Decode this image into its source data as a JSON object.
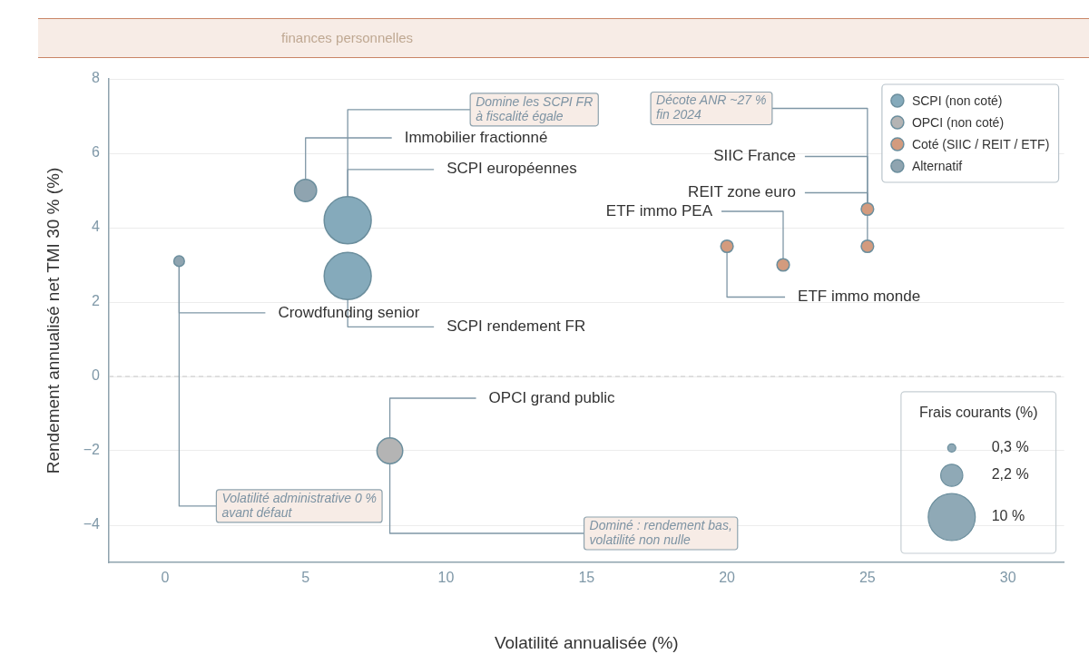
{
  "chart_data": {
    "type": "bubble",
    "subtitle": "finances personnelles",
    "xlabel": "Volatilité annualisée (%)",
    "ylabel": "Rendement annualisé net TMI 30 % (%)",
    "legend_title": "Frais courants (%)",
    "series": [
      {
        "name": "SCPI (non coté)",
        "color": "#85aabb",
        "x": [
          6.5,
          6.5
        ],
        "values": [
          2.7,
          4.2
        ],
        "sizes": [
          10,
          10
        ]
      },
      {
        "name": "OPCI (non coté)",
        "color": "#b4b4b4",
        "x": [
          8
        ],
        "values": [
          -2
        ],
        "sizes": [
          3
        ]
      },
      {
        "name": "Coté (SIIC / REIT / ETF)",
        "color": "#d39b7e",
        "x": [
          25,
          25,
          22,
          20
        ],
        "values": [
          4.5,
          3.5,
          3,
          3.5
        ],
        "sizes": [
          0.7,
          0.7,
          0.7,
          0.7
        ]
      },
      {
        "name": "Alternatif",
        "color": "#8fa4b0",
        "x": [
          5,
          0.5
        ],
        "values": [
          5,
          3.1
        ],
        "sizes": [
          2.2,
          0.5
        ]
      }
    ],
    "size_legend": [
      {
        "value": 0.3,
        "label": "0,3 %"
      },
      {
        "value": 2.2,
        "label": "2,2 %"
      },
      {
        "value": 10,
        "label": "10 %"
      }
    ],
    "xlim": [
      -2,
      32
    ],
    "xticks": [
      0,
      5,
      10,
      15,
      20,
      25,
      30
    ],
    "ylim": [
      -5,
      8
    ],
    "yticks": [
      {
        "value": -4,
        "label": "−4"
      },
      {
        "value": -2,
        "label": "−2"
      },
      0,
      2,
      4,
      6,
      8
    ],
    "ref_lines": [
      {
        "axis": "y",
        "value": 0,
        "color": "#c8c8c8",
        "line_style": "dashed"
      }
    ],
    "annotations": [
      {
        "text": "Immobilier fractionné",
        "x": 5,
        "y": 5
      },
      {
        "text": "SCPI européennes",
        "x": 6.5,
        "y": 4.2
      },
      {
        "text": "SCPI rendement FR",
        "x": 6.5,
        "y": 2.7
      },
      {
        "text": "Crowdfunding senior",
        "x": 0.5,
        "y": 3.1
      },
      {
        "text": "OPCI grand public",
        "x": 8,
        "y": -2
      },
      {
        "text": "SIIC France",
        "x": 25,
        "y": 4.5
      },
      {
        "text": "REIT zone euro",
        "x": 25,
        "y": 3.5
      },
      {
        "text": "ETF immo PEA",
        "x": 22,
        "y": 3
      },
      {
        "text": "ETF immo monde",
        "x": 20,
        "y": 3.5
      },
      {
        "text": "Domine les SCPI FR\nà fiscalité égale",
        "x": 6.5,
        "y": 4.2
      },
      {
        "text": "Décote ANR ~27 %\nfin 2024",
        "x": 25,
        "y": 4.5
      },
      {
        "text": "Volatilité administrative 0 %\navant défaut",
        "x": 0.5,
        "y": 3.1
      },
      {
        "text": "Dominé : rendement bas,\nvolatilité non nulle",
        "x": 8,
        "y": -2
      }
    ],
    "grid": "y",
    "legend": "top right"
  }
}
